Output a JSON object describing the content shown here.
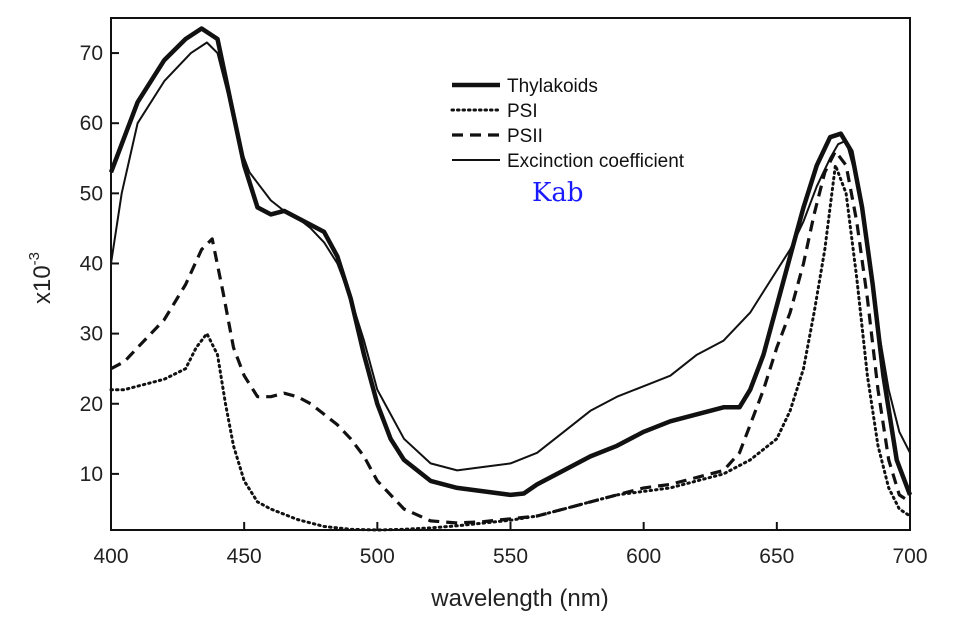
{
  "chart_data": {
    "type": "line",
    "xlabel": "wavelength (nm)",
    "ylabel": "x10",
    "ylabel_exponent": "-3",
    "xlim": [
      400,
      700
    ],
    "ylim": [
      2,
      75
    ],
    "x_ticks": [
      400,
      450,
      500,
      550,
      600,
      650,
      700
    ],
    "y_ticks": [
      10,
      20,
      30,
      40,
      50,
      60,
      70
    ],
    "grid": false,
    "legend_position": "top-center",
    "annotation": "Kab",
    "annotation_color": "#1a1aff",
    "series": [
      {
        "name": "Thylakoids",
        "style": "thick-solid",
        "x": [
          400,
          403,
          410,
          420,
          428,
          434,
          440,
          445,
          450,
          455,
          460,
          465,
          470,
          475,
          480,
          485,
          490,
          495,
          500,
          505,
          510,
          520,
          530,
          540,
          550,
          555,
          560,
          570,
          580,
          590,
          600,
          610,
          620,
          630,
          636,
          640,
          645,
          650,
          655,
          660,
          665,
          670,
          674,
          678,
          682,
          686,
          690,
          695,
          700
        ],
        "y": [
          53,
          56,
          63,
          69,
          72,
          73.5,
          72,
          63,
          54,
          48,
          47,
          47.5,
          46.5,
          45.5,
          44.5,
          41,
          35,
          27,
          20,
          15,
          12,
          9,
          8,
          7.5,
          7,
          7.2,
          8.5,
          10.5,
          12.5,
          14,
          16,
          17.5,
          18.5,
          19.5,
          19.5,
          22,
          27,
          34,
          41,
          48,
          54,
          58,
          58.5,
          56,
          48,
          37,
          24,
          12,
          7
        ]
      },
      {
        "name": "PSI",
        "style": "dotted",
        "x": [
          400,
          405,
          410,
          420,
          428,
          432,
          436,
          440,
          443,
          446,
          450,
          455,
          460,
          470,
          480,
          490,
          500,
          510,
          520,
          530,
          540,
          550,
          560,
          570,
          580,
          590,
          600,
          610,
          620,
          630,
          640,
          650,
          655,
          660,
          664,
          668,
          672,
          676,
          680,
          684,
          688,
          692,
          696,
          700
        ],
        "y": [
          22,
          22,
          22.5,
          23.5,
          25,
          28,
          30,
          27,
          20,
          14,
          9,
          6,
          5,
          3.5,
          2.5,
          2.1,
          2,
          2.1,
          2.3,
          2.6,
          3,
          3.4,
          4,
          5,
          6,
          7,
          7.5,
          8,
          9,
          10,
          12,
          15,
          19,
          25,
          33,
          42,
          54,
          50,
          38,
          24,
          14,
          8,
          5,
          4
        ]
      },
      {
        "name": "PSII",
        "style": "dashed",
        "x": [
          400,
          405,
          410,
          420,
          428,
          434,
          438,
          442,
          446,
          450,
          455,
          460,
          465,
          470,
          475,
          480,
          485,
          490,
          495,
          500,
          510,
          520,
          530,
          540,
          550,
          560,
          570,
          580,
          590,
          600,
          610,
          620,
          630,
          636,
          640,
          645,
          650,
          655,
          660,
          664,
          668,
          672,
          676,
          680,
          684,
          688,
          692,
          696,
          700
        ],
        "y": [
          25,
          26,
          28,
          32,
          37,
          42,
          43.5,
          36,
          28,
          24,
          21,
          21,
          21.5,
          21,
          20,
          18.5,
          17,
          15,
          12.5,
          9,
          5,
          3.3,
          3,
          3.2,
          3.6,
          4,
          5,
          6,
          7,
          8,
          8.5,
          9.5,
          10.5,
          13,
          17,
          22,
          28,
          33,
          40,
          47,
          53,
          56,
          54,
          46,
          35,
          22,
          12,
          7,
          6
        ]
      },
      {
        "name": "Excinction coefficient",
        "style": "thin-solid",
        "x": [
          400,
          404,
          410,
          420,
          430,
          436,
          440,
          444,
          448,
          452,
          456,
          460,
          465,
          470,
          475,
          480,
          485,
          490,
          495,
          500,
          510,
          520,
          530,
          540,
          550,
          560,
          570,
          580,
          590,
          600,
          610,
          620,
          630,
          640,
          645,
          650,
          655,
          660,
          665,
          670,
          673,
          676,
          680,
          684,
          688,
          692,
          696,
          700
        ],
        "y": [
          40,
          50,
          60,
          66,
          70,
          71.5,
          70,
          64,
          57,
          53,
          51,
          49,
          47.5,
          46.5,
          45,
          43,
          40,
          35,
          29,
          22,
          15,
          11.5,
          10.5,
          11,
          11.5,
          13,
          16,
          19,
          21,
          22.5,
          24,
          27,
          29,
          33,
          36,
          39,
          42,
          46,
          51,
          55,
          57,
          57.5,
          52,
          42,
          31,
          22,
          16,
          13
        ]
      }
    ]
  }
}
